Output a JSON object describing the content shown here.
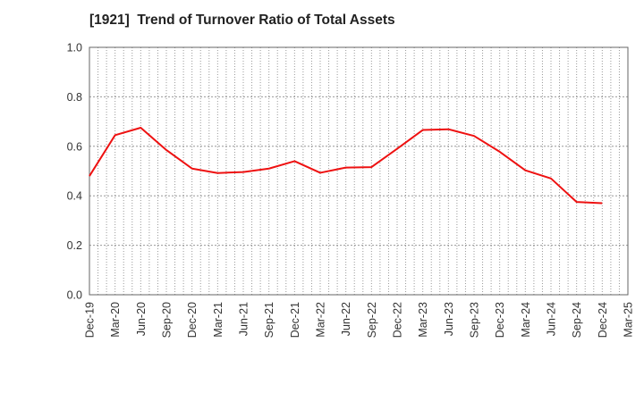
{
  "chart_data": {
    "type": "line",
    "title": "[1921]  Trend of Turnover Ratio of Total Assets",
    "xlabel": "",
    "ylabel": "",
    "ylim": [
      0.0,
      1.0
    ],
    "y_ticks": [
      "0.0",
      "0.2",
      "0.4",
      "0.6",
      "0.8",
      "1.0"
    ],
    "x_ticks": [
      "Dec-19",
      "Mar-20",
      "Jun-20",
      "Sep-20",
      "Dec-20",
      "Mar-21",
      "Jun-21",
      "Sep-21",
      "Dec-21",
      "Mar-22",
      "Jun-22",
      "Sep-22",
      "Dec-22",
      "Mar-23",
      "Jun-23",
      "Sep-23",
      "Dec-23",
      "Mar-24",
      "Jun-24",
      "Sep-24",
      "Dec-24",
      "Mar-25"
    ],
    "grid": true,
    "series": [
      {
        "color": "#ee1111",
        "x": [
          "Dec-19",
          "Mar-20",
          "Jun-20",
          "Sep-20",
          "Dec-20",
          "Mar-21",
          "Jun-21",
          "Sep-21",
          "Dec-21",
          "Mar-22",
          "Jun-22",
          "Sep-22",
          "Dec-22",
          "Mar-23",
          "Jun-23",
          "Sep-23",
          "Dec-23",
          "Mar-24",
          "Jun-24",
          "Sep-24",
          "Dec-24"
        ],
        "values": [
          0.48,
          0.645,
          0.675,
          0.585,
          0.51,
          0.492,
          0.496,
          0.51,
          0.54,
          0.493,
          0.514,
          0.516,
          0.59,
          0.666,
          0.669,
          0.642,
          0.578,
          0.503,
          0.47,
          0.375,
          0.37
        ]
      }
    ]
  }
}
